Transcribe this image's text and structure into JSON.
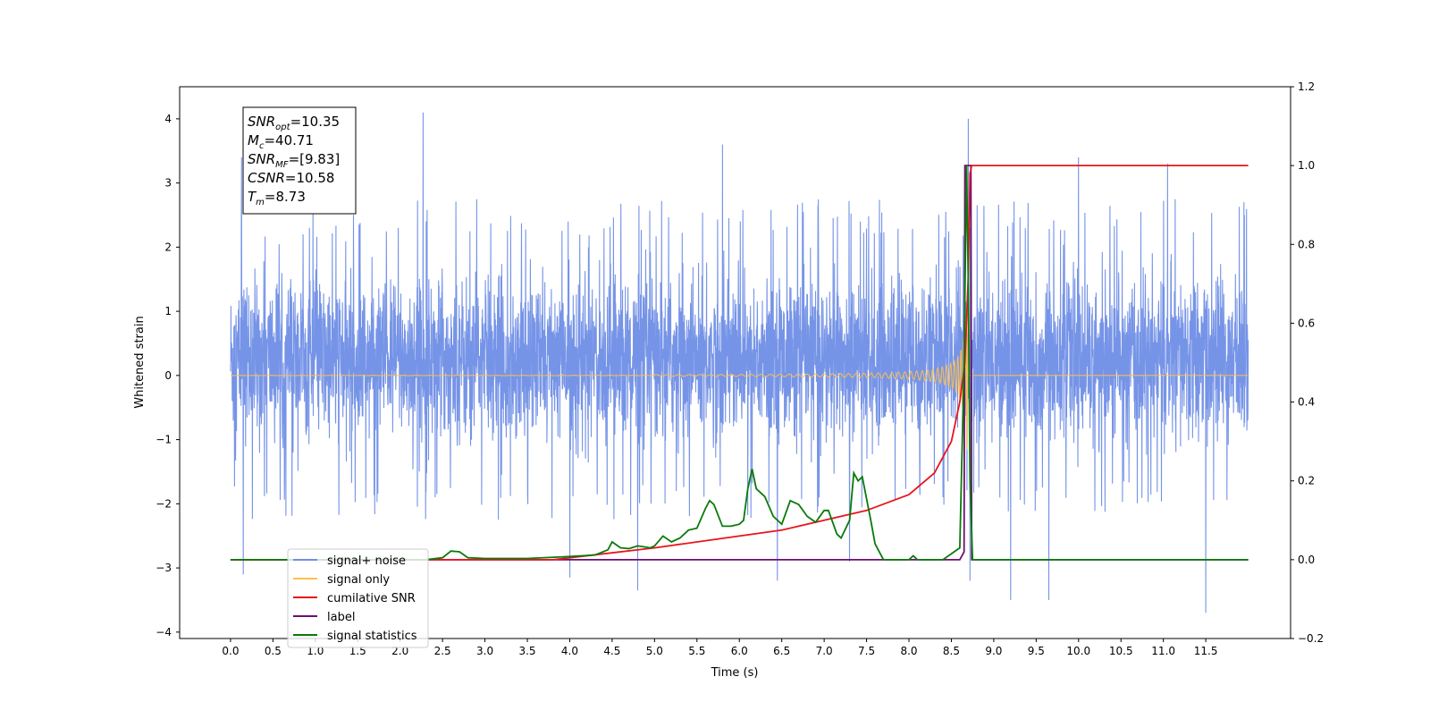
{
  "chart_data": {
    "type": "line",
    "xlabel": "Time (s)",
    "ylabel": "Whitened strain",
    "xlim": [
      -0.6,
      12.5
    ],
    "ylim": [
      -4.1,
      4.5
    ],
    "y2lim": [
      -0.2,
      1.2
    ],
    "x_ticks": [
      "0.0",
      "0.5",
      "1.0",
      "1.5",
      "2.0",
      "2.5",
      "3.0",
      "3.5",
      "4.0",
      "4.5",
      "5.0",
      "5.5",
      "6.0",
      "6.5",
      "7.0",
      "7.5",
      "8.0",
      "8.5",
      "9.0",
      "9.5",
      "10.0",
      "10.5",
      "11.0",
      "11.5"
    ],
    "y_ticks": [
      "−4",
      "−3",
      "−2",
      "−1",
      "0",
      "1",
      "2",
      "3",
      "4"
    ],
    "y2_ticks": [
      "−0.2",
      "0.0",
      "0.2",
      "0.4",
      "0.6",
      "0.8",
      "1.0",
      "1.2"
    ],
    "legend_position": "bottom-left",
    "annotation": {
      "lines": [
        {
          "sym": "SNR",
          "sub": "opt",
          "val": "=10.35"
        },
        {
          "sym": "M",
          "sub": "c",
          "val": "=40.71"
        },
        {
          "sym": "SNR",
          "sub": "MF",
          "val": "=[9.83]"
        },
        {
          "sym": "CSNR",
          "sub": "",
          "val": "=10.58"
        },
        {
          "sym": "T",
          "sub": "m",
          "val": "=8.73"
        }
      ]
    },
    "merger_time": 8.73,
    "series": [
      {
        "name": "signal+ noise",
        "color": "#6f8ee6",
        "axis": "left",
        "description_values": {
          "t_start": 0.0,
          "t_end": 12.0,
          "typical_range": [
            -1.5,
            2.2
          ],
          "extremes": [
            -3.7,
            4.1
          ]
        },
        "peaks": [
          [
            0.13,
            3.4
          ],
          [
            0.15,
            -3.1
          ],
          [
            2.27,
            4.1
          ],
          [
            4.0,
            -3.15
          ],
          [
            4.8,
            -3.35
          ],
          [
            5.8,
            3.6
          ],
          [
            6.45,
            -3.2
          ],
          [
            7.3,
            -2.9
          ],
          [
            8.7,
            4.0
          ],
          [
            8.72,
            -3.2
          ],
          [
            9.2,
            -3.5
          ],
          [
            9.65,
            -3.5
          ],
          [
            10.0,
            3.4
          ],
          [
            11.05,
            3.3
          ],
          [
            11.5,
            -3.7
          ],
          [
            11.95,
            2.7
          ]
        ]
      },
      {
        "name": "signal only",
        "color": "#ffbf4d",
        "axis": "left",
        "chirp": {
          "t_start": 0.0,
          "t_merge": 8.7,
          "amp_start": 0.005,
          "amp_peak": 1.2
        }
      },
      {
        "name": "cumilative SNR",
        "color": "#e8141b",
        "axis": "right",
        "points": [
          [
            0.0,
            0.0
          ],
          [
            3.8,
            0.0
          ],
          [
            4.0,
            0.005
          ],
          [
            5.0,
            0.03
          ],
          [
            6.0,
            0.06
          ],
          [
            6.5,
            0.075
          ],
          [
            7.0,
            0.1
          ],
          [
            7.5,
            0.125
          ],
          [
            8.0,
            0.165
          ],
          [
            8.3,
            0.22
          ],
          [
            8.5,
            0.3
          ],
          [
            8.6,
            0.4
          ],
          [
            8.66,
            0.5
          ],
          [
            8.7,
            0.72
          ],
          [
            8.72,
            0.98
          ],
          [
            8.74,
            1.0
          ],
          [
            12.0,
            1.0
          ]
        ]
      },
      {
        "name": "label",
        "color": "#6b0f6e",
        "axis": "right",
        "points": [
          [
            0.0,
            0.0
          ],
          [
            8.6,
            0.0
          ],
          [
            8.65,
            0.02
          ],
          [
            8.66,
            1.0
          ],
          [
            8.73,
            1.0
          ],
          [
            8.74,
            0.0
          ],
          [
            12.0,
            0.0
          ]
        ]
      },
      {
        "name": "signal statistics",
        "color": "#0a7a0a",
        "axis": "right",
        "points": [
          [
            0.0,
            0.0
          ],
          [
            2.3,
            0.0
          ],
          [
            2.5,
            0.005
          ],
          [
            2.6,
            0.022
          ],
          [
            2.7,
            0.02
          ],
          [
            2.8,
            0.005
          ],
          [
            3.0,
            0.003
          ],
          [
            3.5,
            0.003
          ],
          [
            4.0,
            0.008
          ],
          [
            4.3,
            0.012
          ],
          [
            4.45,
            0.025
          ],
          [
            4.5,
            0.045
          ],
          [
            4.6,
            0.03
          ],
          [
            4.7,
            0.028
          ],
          [
            4.8,
            0.035
          ],
          [
            4.95,
            0.03
          ],
          [
            5.0,
            0.035
          ],
          [
            5.1,
            0.06
          ],
          [
            5.2,
            0.045
          ],
          [
            5.3,
            0.055
          ],
          [
            5.4,
            0.075
          ],
          [
            5.5,
            0.08
          ],
          [
            5.6,
            0.13
          ],
          [
            5.65,
            0.15
          ],
          [
            5.7,
            0.14
          ],
          [
            5.8,
            0.085
          ],
          [
            5.9,
            0.085
          ],
          [
            6.0,
            0.09
          ],
          [
            6.05,
            0.1
          ],
          [
            6.1,
            0.18
          ],
          [
            6.15,
            0.23
          ],
          [
            6.2,
            0.18
          ],
          [
            6.3,
            0.16
          ],
          [
            6.4,
            0.11
          ],
          [
            6.5,
            0.09
          ],
          [
            6.6,
            0.15
          ],
          [
            6.7,
            0.14
          ],
          [
            6.8,
            0.11
          ],
          [
            6.9,
            0.095
          ],
          [
            7.0,
            0.125
          ],
          [
            7.05,
            0.125
          ],
          [
            7.15,
            0.065
          ],
          [
            7.2,
            0.055
          ],
          [
            7.3,
            0.1
          ],
          [
            7.35,
            0.22
          ],
          [
            7.4,
            0.2
          ],
          [
            7.45,
            0.21
          ],
          [
            7.55,
            0.1
          ],
          [
            7.6,
            0.04
          ],
          [
            7.7,
            0.0
          ],
          [
            8.0,
            0.0
          ],
          [
            8.05,
            0.01
          ],
          [
            8.1,
            0.0
          ],
          [
            8.4,
            0.0
          ],
          [
            8.6,
            0.03
          ],
          [
            8.65,
            0.5
          ],
          [
            8.68,
            1.0
          ],
          [
            8.7,
            0.7
          ],
          [
            8.72,
            0.2
          ],
          [
            8.75,
            0.0
          ],
          [
            12.0,
            0.0
          ]
        ]
      }
    ]
  }
}
